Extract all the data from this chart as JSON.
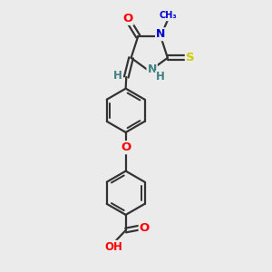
{
  "bg_color": "#ebebeb",
  "bond_color": "#333333",
  "bond_width": 1.6,
  "atom_colors": {
    "O": "#ff0000",
    "N": "#0000cc",
    "S": "#cccc00",
    "H": "#408080",
    "C": "#333333"
  },
  "font_size": 8.5,
  "fig_size": [
    3.0,
    3.0
  ],
  "dpi": 100,
  "xlim": [
    0,
    10
  ],
  "ylim": [
    0,
    10
  ]
}
